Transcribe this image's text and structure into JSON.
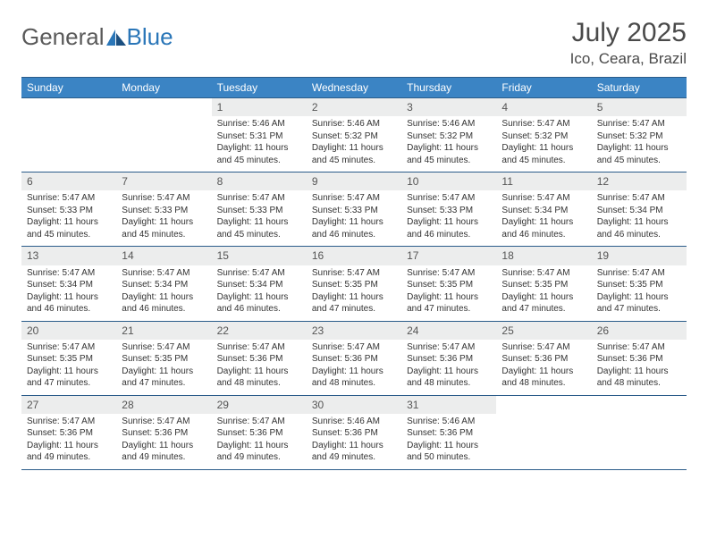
{
  "logo": {
    "text1": "General",
    "text2": "Blue"
  },
  "title": "July 2025",
  "location": "Ico, Ceara, Brazil",
  "colors": {
    "header_bg": "#3b84c4",
    "header_border": "#2a5c8a",
    "daynum_bg": "#eceded",
    "text": "#333333",
    "title_text": "#4a4a4a"
  },
  "day_names": [
    "Sunday",
    "Monday",
    "Tuesday",
    "Wednesday",
    "Thursday",
    "Friday",
    "Saturday"
  ],
  "weeks": [
    [
      null,
      null,
      {
        "n": "1",
        "sr": "Sunrise: 5:46 AM",
        "ss": "Sunset: 5:31 PM",
        "dl": "Daylight: 11 hours and 45 minutes."
      },
      {
        "n": "2",
        "sr": "Sunrise: 5:46 AM",
        "ss": "Sunset: 5:32 PM",
        "dl": "Daylight: 11 hours and 45 minutes."
      },
      {
        "n": "3",
        "sr": "Sunrise: 5:46 AM",
        "ss": "Sunset: 5:32 PM",
        "dl": "Daylight: 11 hours and 45 minutes."
      },
      {
        "n": "4",
        "sr": "Sunrise: 5:47 AM",
        "ss": "Sunset: 5:32 PM",
        "dl": "Daylight: 11 hours and 45 minutes."
      },
      {
        "n": "5",
        "sr": "Sunrise: 5:47 AM",
        "ss": "Sunset: 5:32 PM",
        "dl": "Daylight: 11 hours and 45 minutes."
      }
    ],
    [
      {
        "n": "6",
        "sr": "Sunrise: 5:47 AM",
        "ss": "Sunset: 5:33 PM",
        "dl": "Daylight: 11 hours and 45 minutes."
      },
      {
        "n": "7",
        "sr": "Sunrise: 5:47 AM",
        "ss": "Sunset: 5:33 PM",
        "dl": "Daylight: 11 hours and 45 minutes."
      },
      {
        "n": "8",
        "sr": "Sunrise: 5:47 AM",
        "ss": "Sunset: 5:33 PM",
        "dl": "Daylight: 11 hours and 45 minutes."
      },
      {
        "n": "9",
        "sr": "Sunrise: 5:47 AM",
        "ss": "Sunset: 5:33 PM",
        "dl": "Daylight: 11 hours and 46 minutes."
      },
      {
        "n": "10",
        "sr": "Sunrise: 5:47 AM",
        "ss": "Sunset: 5:33 PM",
        "dl": "Daylight: 11 hours and 46 minutes."
      },
      {
        "n": "11",
        "sr": "Sunrise: 5:47 AM",
        "ss": "Sunset: 5:34 PM",
        "dl": "Daylight: 11 hours and 46 minutes."
      },
      {
        "n": "12",
        "sr": "Sunrise: 5:47 AM",
        "ss": "Sunset: 5:34 PM",
        "dl": "Daylight: 11 hours and 46 minutes."
      }
    ],
    [
      {
        "n": "13",
        "sr": "Sunrise: 5:47 AM",
        "ss": "Sunset: 5:34 PM",
        "dl": "Daylight: 11 hours and 46 minutes."
      },
      {
        "n": "14",
        "sr": "Sunrise: 5:47 AM",
        "ss": "Sunset: 5:34 PM",
        "dl": "Daylight: 11 hours and 46 minutes."
      },
      {
        "n": "15",
        "sr": "Sunrise: 5:47 AM",
        "ss": "Sunset: 5:34 PM",
        "dl": "Daylight: 11 hours and 46 minutes."
      },
      {
        "n": "16",
        "sr": "Sunrise: 5:47 AM",
        "ss": "Sunset: 5:35 PM",
        "dl": "Daylight: 11 hours and 47 minutes."
      },
      {
        "n": "17",
        "sr": "Sunrise: 5:47 AM",
        "ss": "Sunset: 5:35 PM",
        "dl": "Daylight: 11 hours and 47 minutes."
      },
      {
        "n": "18",
        "sr": "Sunrise: 5:47 AM",
        "ss": "Sunset: 5:35 PM",
        "dl": "Daylight: 11 hours and 47 minutes."
      },
      {
        "n": "19",
        "sr": "Sunrise: 5:47 AM",
        "ss": "Sunset: 5:35 PM",
        "dl": "Daylight: 11 hours and 47 minutes."
      }
    ],
    [
      {
        "n": "20",
        "sr": "Sunrise: 5:47 AM",
        "ss": "Sunset: 5:35 PM",
        "dl": "Daylight: 11 hours and 47 minutes."
      },
      {
        "n": "21",
        "sr": "Sunrise: 5:47 AM",
        "ss": "Sunset: 5:35 PM",
        "dl": "Daylight: 11 hours and 47 minutes."
      },
      {
        "n": "22",
        "sr": "Sunrise: 5:47 AM",
        "ss": "Sunset: 5:36 PM",
        "dl": "Daylight: 11 hours and 48 minutes."
      },
      {
        "n": "23",
        "sr": "Sunrise: 5:47 AM",
        "ss": "Sunset: 5:36 PM",
        "dl": "Daylight: 11 hours and 48 minutes."
      },
      {
        "n": "24",
        "sr": "Sunrise: 5:47 AM",
        "ss": "Sunset: 5:36 PM",
        "dl": "Daylight: 11 hours and 48 minutes."
      },
      {
        "n": "25",
        "sr": "Sunrise: 5:47 AM",
        "ss": "Sunset: 5:36 PM",
        "dl": "Daylight: 11 hours and 48 minutes."
      },
      {
        "n": "26",
        "sr": "Sunrise: 5:47 AM",
        "ss": "Sunset: 5:36 PM",
        "dl": "Daylight: 11 hours and 48 minutes."
      }
    ],
    [
      {
        "n": "27",
        "sr": "Sunrise: 5:47 AM",
        "ss": "Sunset: 5:36 PM",
        "dl": "Daylight: 11 hours and 49 minutes."
      },
      {
        "n": "28",
        "sr": "Sunrise: 5:47 AM",
        "ss": "Sunset: 5:36 PM",
        "dl": "Daylight: 11 hours and 49 minutes."
      },
      {
        "n": "29",
        "sr": "Sunrise: 5:47 AM",
        "ss": "Sunset: 5:36 PM",
        "dl": "Daylight: 11 hours and 49 minutes."
      },
      {
        "n": "30",
        "sr": "Sunrise: 5:46 AM",
        "ss": "Sunset: 5:36 PM",
        "dl": "Daylight: 11 hours and 49 minutes."
      },
      {
        "n": "31",
        "sr": "Sunrise: 5:46 AM",
        "ss": "Sunset: 5:36 PM",
        "dl": "Daylight: 11 hours and 50 minutes."
      },
      null,
      null
    ]
  ]
}
